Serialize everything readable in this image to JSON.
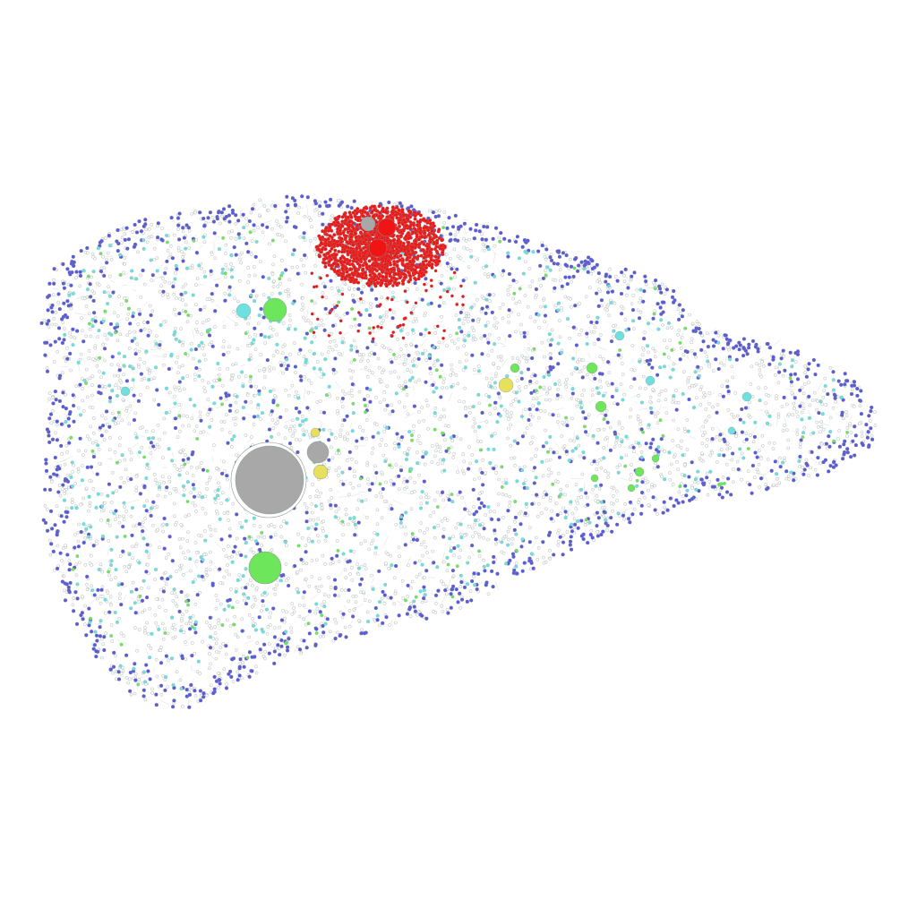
{
  "diagram": {
    "type": "network-graph",
    "layout": "force-directed",
    "labels_shown": false,
    "background": "#ffffff",
    "edge_color": "#c9d6d0",
    "node_stroke": "#8c9a94",
    "palette": {
      "blue": "#5b5bd6",
      "red": "#f01414",
      "cyan": "#6fe0e0",
      "green": "#6ee65c",
      "yellow": "#e6e05c",
      "gray": "#a8a8a8",
      "white": "#ffffff"
    }
  }
}
